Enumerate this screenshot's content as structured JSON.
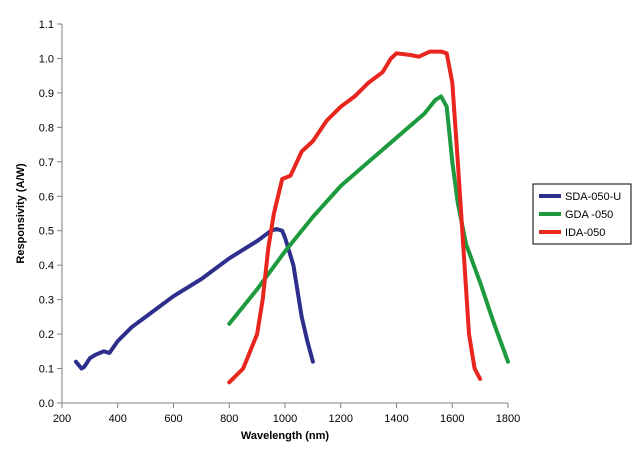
{
  "chart_data": {
    "type": "line",
    "title": "",
    "xlabel": "Wavelength (nm)",
    "ylabel": "Responsivity (A/W)",
    "xlim": [
      200,
      1800
    ],
    "ylim": [
      0.0,
      1.1
    ],
    "xticks": [
      200,
      400,
      600,
      800,
      1000,
      1200,
      1400,
      1600,
      1800
    ],
    "yticks": [
      0.0,
      0.1,
      0.2,
      0.3,
      0.4,
      0.5,
      0.6,
      0.7,
      0.8,
      0.9,
      1.0,
      1.1
    ],
    "ytick_labels": [
      "0.0",
      "0.1",
      "0.2",
      "0.3",
      "0.4",
      "0.5",
      "0.6",
      "0.7",
      "0.8",
      "0.9",
      "1.0",
      "1.1"
    ],
    "grid": false,
    "legend": "right",
    "series": [
      {
        "name": "SDA-050-U",
        "color": "#2e2e8c",
        "points": [
          [
            250,
            0.12
          ],
          [
            270,
            0.1
          ],
          [
            280,
            0.105
          ],
          [
            300,
            0.13
          ],
          [
            320,
            0.14
          ],
          [
            350,
            0.15
          ],
          [
            370,
            0.145
          ],
          [
            400,
            0.18
          ],
          [
            450,
            0.22
          ],
          [
            500,
            0.25
          ],
          [
            600,
            0.31
          ],
          [
            700,
            0.36
          ],
          [
            800,
            0.42
          ],
          [
            900,
            0.47
          ],
          [
            950,
            0.5
          ],
          [
            970,
            0.505
          ],
          [
            990,
            0.5
          ],
          [
            1000,
            0.48
          ],
          [
            1030,
            0.4
          ],
          [
            1060,
            0.25
          ],
          [
            1080,
            0.18
          ],
          [
            1100,
            0.12
          ]
        ]
      },
      {
        "name": "GDA -050",
        "color": "#1e9a3e",
        "points": [
          [
            800,
            0.23
          ],
          [
            900,
            0.33
          ],
          [
            1000,
            0.44
          ],
          [
            1100,
            0.54
          ],
          [
            1200,
            0.63
          ],
          [
            1300,
            0.7
          ],
          [
            1400,
            0.77
          ],
          [
            1500,
            0.84
          ],
          [
            1540,
            0.88
          ],
          [
            1560,
            0.89
          ],
          [
            1580,
            0.86
          ],
          [
            1600,
            0.7
          ],
          [
            1620,
            0.58
          ],
          [
            1650,
            0.46
          ],
          [
            1700,
            0.35
          ],
          [
            1750,
            0.23
          ],
          [
            1800,
            0.12
          ]
        ]
      },
      {
        "name": "IDA-050",
        "color": "#e8261e",
        "points": [
          [
            800,
            0.06
          ],
          [
            850,
            0.1
          ],
          [
            900,
            0.2
          ],
          [
            920,
            0.3
          ],
          [
            940,
            0.45
          ],
          [
            960,
            0.55
          ],
          [
            990,
            0.65
          ],
          [
            1020,
            0.66
          ],
          [
            1060,
            0.73
          ],
          [
            1100,
            0.76
          ],
          [
            1150,
            0.82
          ],
          [
            1200,
            0.86
          ],
          [
            1250,
            0.89
          ],
          [
            1300,
            0.93
          ],
          [
            1350,
            0.96
          ],
          [
            1380,
            1.0
          ],
          [
            1400,
            1.015
          ],
          [
            1450,
            1.01
          ],
          [
            1480,
            1.005
          ],
          [
            1520,
            1.02
          ],
          [
            1560,
            1.02
          ],
          [
            1580,
            1.015
          ],
          [
            1600,
            0.93
          ],
          [
            1620,
            0.7
          ],
          [
            1640,
            0.45
          ],
          [
            1660,
            0.2
          ],
          [
            1680,
            0.1
          ],
          [
            1700,
            0.07
          ]
        ]
      }
    ]
  }
}
